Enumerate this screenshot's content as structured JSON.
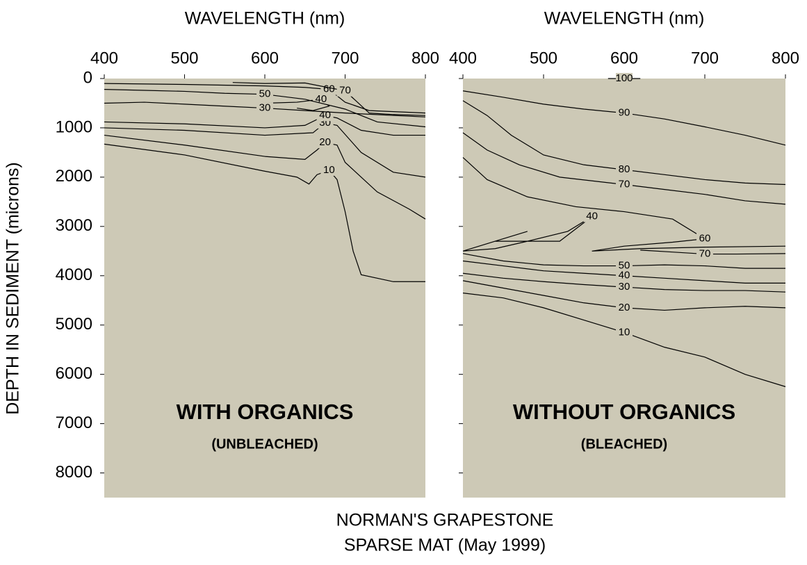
{
  "figure": {
    "ylabel": "DEPTH IN SEDIMENT (microns)",
    "caption": [
      "NORMAN'S GRAPESTONE",
      "SPARSE MAT (May 1999)"
    ]
  },
  "chart_data": [
    {
      "type": "contour",
      "xlabel": "WAVELENGTH (nm)",
      "xlim": [
        400,
        800
      ],
      "xticks": [
        400,
        500,
        600,
        700,
        800
      ],
      "ylim": [
        0,
        8500
      ],
      "yreverse": true,
      "yticks": [
        0,
        1000,
        2000,
        3000,
        4000,
        5000,
        6000,
        7000,
        8000
      ],
      "show_ytick_labels": true,
      "background": "#cdc9b6",
      "line_color": "#000000",
      "panel_title": "WITH ORGANICS",
      "panel_subtitle": "(UNBLEACHED)",
      "series": [
        {
          "name": "10",
          "x": [
            400,
            500,
            600,
            640,
            655,
            665,
            680,
            690,
            700,
            710,
            720,
            760,
            800
          ],
          "values": [
            1330,
            1550,
            1880,
            2000,
            2140,
            1950,
            1860,
            2050,
            2700,
            3500,
            3980,
            4120,
            4120
          ]
        },
        {
          "name": "20",
          "x": [
            400,
            500,
            600,
            650,
            665,
            675,
            690,
            700,
            740,
            780,
            800
          ],
          "values": [
            1150,
            1350,
            1580,
            1640,
            1450,
            1300,
            1350,
            1700,
            2300,
            2650,
            2850
          ]
        },
        {
          "name": "30",
          "x": [
            400,
            500,
            600,
            660,
            675,
            690,
            720,
            760,
            800
          ],
          "values": [
            1000,
            1050,
            1150,
            1100,
            900,
            950,
            1500,
            1900,
            2000
          ]
        },
        {
          "name": "40",
          "x": [
            400,
            500,
            600,
            650,
            675,
            690,
            720,
            760,
            800
          ],
          "values": [
            880,
            920,
            1000,
            950,
            750,
            800,
            1050,
            1150,
            1150
          ]
        },
        {
          "name": "40",
          "x": [
            600,
            640,
            660,
            670,
            680,
            660,
            640
          ],
          "values": [
            500,
            480,
            440,
            420,
            560,
            650,
            600
          ]
        },
        {
          "name": "50",
          "x": [
            400,
            450,
            500,
            550,
            600,
            650,
            700,
            740,
            800
          ],
          "values": [
            220,
            240,
            260,
            300,
            320,
            420,
            620,
            880,
            980
          ]
        },
        {
          "name": "30",
          "x": [
            400,
            450,
            500,
            550,
            600,
            650,
            700,
            800
          ],
          "values": [
            500,
            480,
            520,
            560,
            600,
            650,
            700,
            780
          ]
        },
        {
          "name": "60",
          "x": [
            400,
            500,
            600,
            650,
            680,
            700,
            730,
            800
          ],
          "values": [
            100,
            120,
            150,
            180,
            220,
            480,
            650,
            700
          ]
        },
        {
          "name": "70",
          "x": [
            560,
            600,
            650,
            700,
            730,
            760,
            800
          ],
          "values": [
            80,
            100,
            90,
            250,
            700,
            730,
            750
          ]
        }
      ]
    },
    {
      "type": "contour",
      "xlabel": "WAVELENGTH (nm)",
      "xlim": [
        400,
        800
      ],
      "xticks": [
        400,
        500,
        600,
        700,
        800
      ],
      "ylim": [
        0,
        8500
      ],
      "yreverse": true,
      "yticks": [
        0,
        1000,
        2000,
        3000,
        4000,
        5000,
        6000,
        7000,
        8000
      ],
      "show_ytick_labels": false,
      "background": "#cdc9b6",
      "line_color": "#000000",
      "panel_title": "WITHOUT ORGANICS",
      "panel_subtitle": "(BLEACHED)",
      "series": [
        {
          "name": "100",
          "x": [
            580,
            600,
            620
          ],
          "values": [
            0,
            0,
            0
          ]
        },
        {
          "name": "90",
          "x": [
            400,
            450,
            500,
            550,
            600,
            650,
            700,
            750,
            800
          ],
          "values": [
            250,
            380,
            520,
            620,
            700,
            820,
            980,
            1150,
            1350
          ]
        },
        {
          "name": "80",
          "x": [
            400,
            430,
            460,
            500,
            550,
            600,
            650,
            700,
            750,
            800
          ],
          "values": [
            450,
            750,
            1150,
            1550,
            1750,
            1850,
            1950,
            2050,
            2120,
            2150
          ]
        },
        {
          "name": "70",
          "x": [
            400,
            430,
            470,
            520,
            600,
            650,
            700,
            750,
            800
          ],
          "values": [
            1100,
            1450,
            1750,
            2000,
            2150,
            2250,
            2350,
            2480,
            2550
          ]
        },
        {
          "name": "60",
          "x": [
            400,
            430,
            480,
            540,
            600,
            660,
            700,
            660,
            600,
            560,
            620,
            700,
            800
          ],
          "values": [
            1600,
            2050,
            2400,
            2600,
            2700,
            2850,
            3250,
            3320,
            3400,
            3500,
            3450,
            3420,
            3400
          ]
        },
        {
          "name": "40",
          "x": [
            400,
            440,
            480,
            440,
            520,
            560,
            530,
            480,
            440,
            400
          ],
          "values": [
            3500,
            3300,
            3100,
            3300,
            3300,
            2800,
            3100,
            3300,
            3450,
            3500
          ]
        },
        {
          "name": "70",
          "x": [
            620,
            660,
            700,
            740,
            800
          ],
          "values": [
            3480,
            3520,
            3560,
            3560,
            3550
          ]
        },
        {
          "name": "50",
          "x": [
            400,
            450,
            500,
            550,
            600,
            650,
            700,
            750,
            800
          ],
          "values": [
            3550,
            3700,
            3780,
            3800,
            3800,
            3780,
            3800,
            3850,
            3850
          ]
        },
        {
          "name": "40",
          "x": [
            400,
            450,
            500,
            550,
            600,
            650,
            700,
            750,
            800
          ],
          "values": [
            3700,
            3800,
            3900,
            3950,
            4000,
            4050,
            4100,
            4150,
            4150
          ]
        },
        {
          "name": "30",
          "x": [
            400,
            450,
            500,
            550,
            600,
            650,
            700,
            750,
            800
          ],
          "values": [
            3950,
            4050,
            4120,
            4180,
            4230,
            4280,
            4300,
            4300,
            4330
          ]
        },
        {
          "name": "20",
          "x": [
            400,
            450,
            500,
            550,
            600,
            650,
            700,
            750,
            800
          ],
          "values": [
            4100,
            4250,
            4400,
            4550,
            4650,
            4700,
            4650,
            4620,
            4650
          ]
        },
        {
          "name": "10",
          "x": [
            400,
            450,
            500,
            550,
            600,
            650,
            700,
            750,
            800
          ],
          "values": [
            4350,
            4450,
            4650,
            4900,
            5150,
            5450,
            5650,
            6000,
            6250
          ]
        }
      ]
    }
  ]
}
